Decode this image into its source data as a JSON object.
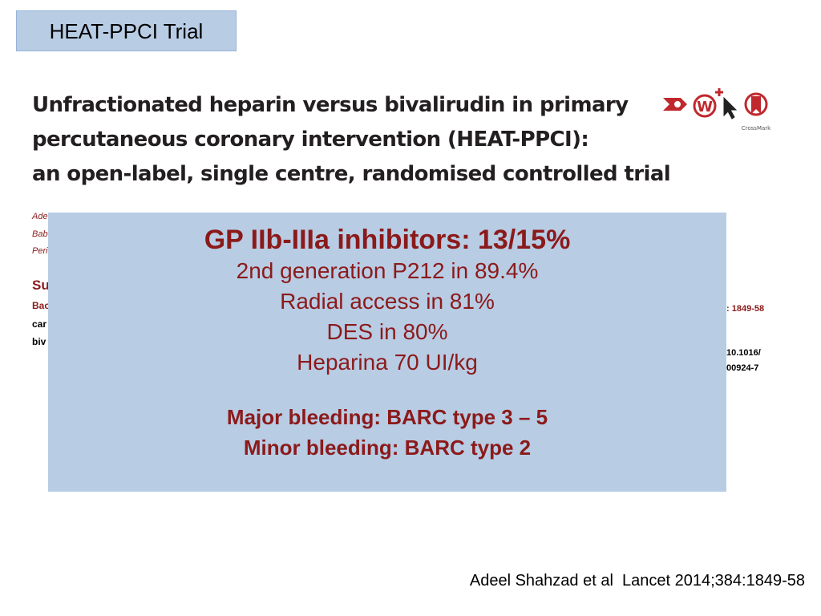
{
  "slide": {
    "trial_tag": "HEAT-PPCI Trial",
    "citation": "Adeel Shahzad et al  Lancet 2014;384:1849-58"
  },
  "article": {
    "title_lines": [
      "Unfractionated heparin versus bivalirudin in primary",
      "percutaneous coronary intervention (HEAT-PPCI):",
      "an open-label, single centre, randomised controlled trial"
    ],
    "author_fragments": [
      "Ade",
      "Bab",
      "Peri"
    ],
    "summary_heading": "Su",
    "summary_fragments": [
      "Bac",
      "car",
      "biv"
    ],
    "right_fragments": [
      ": 1849-58",
      "10.1016/",
      "00924-7"
    ],
    "crossmark_label": "CrossMark"
  },
  "overlay": {
    "headline": "GP IIb-IIIa inhibitors: 13/15%",
    "lines": [
      "2nd generation P212 in 89.4%",
      "Radial access in 81%",
      "DES in 80%",
      "Heparina 70 UI/kg"
    ],
    "bleeding_lines": [
      "Major bleeding: BARC type 3 – 5",
      "Minor bleeding: BARC type 2"
    ]
  },
  "colors": {
    "overlay_bg": "#b8cce4",
    "accent_red": "#8b1a1a"
  }
}
